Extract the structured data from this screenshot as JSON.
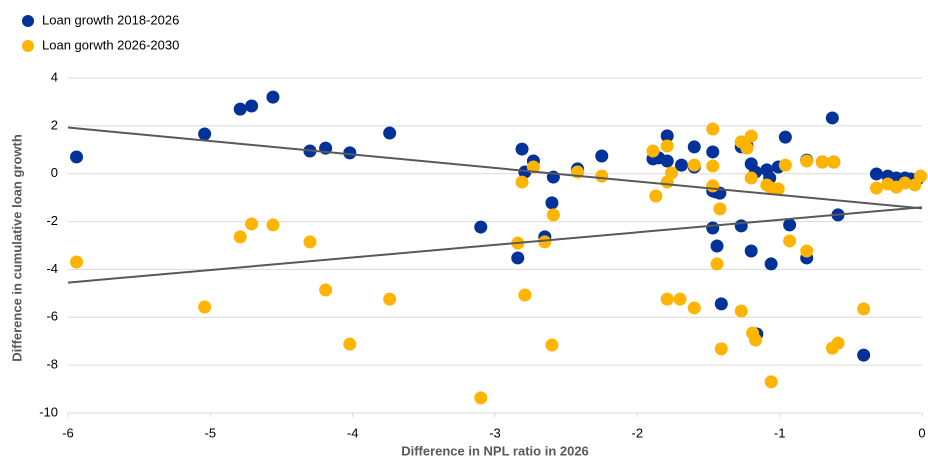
{
  "chart_data": {
    "type": "scatter",
    "xlabel": "Difference in NPL ratio in 2026",
    "ylabel": "Difference in cumulative loan growth",
    "xlim": [
      -6,
      0
    ],
    "xticks": [
      -6,
      -5,
      -4,
      -3,
      -2,
      -1,
      0
    ],
    "ylim": [
      -10,
      4
    ],
    "yticks": [
      -10,
      -8,
      -6,
      -4,
      -2,
      0,
      2,
      4
    ],
    "grid": true,
    "legend": "top-left",
    "series": [
      {
        "name": "Loan growth 2018-2026",
        "color": "#003299",
        "x": [
          -5.94,
          -5.04,
          -4.79,
          -4.71,
          -4.56,
          -4.3,
          -4.19,
          -4.02,
          -3.74,
          -3.1,
          -2.84,
          -2.81,
          -2.79,
          -2.73,
          -2.65,
          -2.6,
          -2.59,
          -2.42,
          -2.25,
          -1.89,
          -1.85,
          -1.79,
          -1.79,
          -1.69,
          -1.6,
          -1.6,
          -1.47,
          -1.47,
          -1.45,
          -1.44,
          -1.42,
          -1.41,
          -1.47,
          -1.27,
          -1.27,
          -1.23,
          -1.2,
          -1.2,
          -1.17,
          -1.16,
          -1.09,
          -1.07,
          -1.06,
          -1.01,
          -0.96,
          -0.93,
          -0.81,
          -0.81,
          -0.7,
          -0.63,
          -0.62,
          -0.59,
          -0.41,
          -0.32,
          -0.24,
          -0.18,
          -0.12,
          -0.08,
          -0.03
        ],
        "values": [
          0.7,
          1.66,
          2.7,
          2.83,
          3.2,
          0.95,
          1.07,
          0.87,
          1.7,
          -2.23,
          -3.52,
          1.03,
          0.07,
          0.53,
          -2.64,
          -1.22,
          -0.14,
          0.2,
          0.74,
          0.62,
          0.66,
          1.58,
          0.53,
          0.36,
          1.12,
          0.28,
          0.91,
          -0.72,
          -0.76,
          -3.02,
          -0.81,
          -5.44,
          -2.27,
          -2.18,
          1.12,
          1.16,
          0.41,
          -3.23,
          0.07,
          -6.7,
          0.16,
          -0.18,
          -3.77,
          0.28,
          1.53,
          -2.14,
          -3.52,
          0.57,
          0.49,
          2.33,
          0.49,
          -1.72,
          -7.58,
          -0.01,
          -0.1,
          -0.18,
          -0.18,
          -0.22,
          -0.22
        ]
      },
      {
        "name": "Loan gorwth 2026-2030",
        "color": "#ffb400",
        "x": [
          -5.94,
          -5.04,
          -4.79,
          -4.71,
          -4.56,
          -4.3,
          -4.19,
          -4.02,
          -3.74,
          -3.1,
          -2.84,
          -2.81,
          -2.79,
          -2.73,
          -2.65,
          -2.6,
          -2.59,
          -2.42,
          -2.25,
          -1.89,
          -1.87,
          -1.79,
          -1.79,
          -1.79,
          -1.76,
          -1.7,
          -1.6,
          -1.6,
          -1.47,
          -1.47,
          -1.47,
          -1.44,
          -1.42,
          -1.41,
          -1.27,
          -1.27,
          -1.23,
          -1.2,
          -1.2,
          -1.19,
          -1.17,
          -1.09,
          -1.06,
          -1.06,
          -1.01,
          -0.96,
          -0.93,
          -0.81,
          -0.81,
          -0.7,
          -0.63,
          -0.62,
          -0.59,
          -0.41,
          -0.32,
          -0.24,
          -0.18,
          -0.12,
          -0.05,
          -0.01
        ],
        "values": [
          -3.69,
          -5.57,
          -2.64,
          -2.1,
          -2.14,
          -2.85,
          -4.86,
          -7.12,
          -5.24,
          -9.37,
          -2.9,
          -0.35,
          -5.07,
          0.28,
          -2.85,
          -7.16,
          -1.72,
          0.07,
          -0.1,
          0.95,
          -0.93,
          1.16,
          -0.35,
          -5.24,
          0.03,
          -5.24,
          -5.61,
          0.36,
          1.87,
          0.32,
          -0.51,
          -3.77,
          -1.47,
          -7.32,
          1.33,
          -5.74,
          1.07,
          1.57,
          -0.18,
          -6.66,
          -6.95,
          -0.47,
          -8.7,
          -0.6,
          -0.64,
          0.36,
          -2.81,
          -3.23,
          0.53,
          0.49,
          -7.29,
          0.49,
          -7.08,
          -5.65,
          -0.6,
          -0.43,
          -0.56,
          -0.39,
          -0.47,
          -0.1
        ]
      }
    ],
    "trendlines": [
      {
        "color": "#595959",
        "x": [
          -6,
          0
        ],
        "values": [
          1.93,
          -1.45
        ]
      },
      {
        "color": "#595959",
        "x": [
          -6,
          0
        ],
        "values": [
          -4.55,
          -1.4
        ]
      }
    ]
  }
}
